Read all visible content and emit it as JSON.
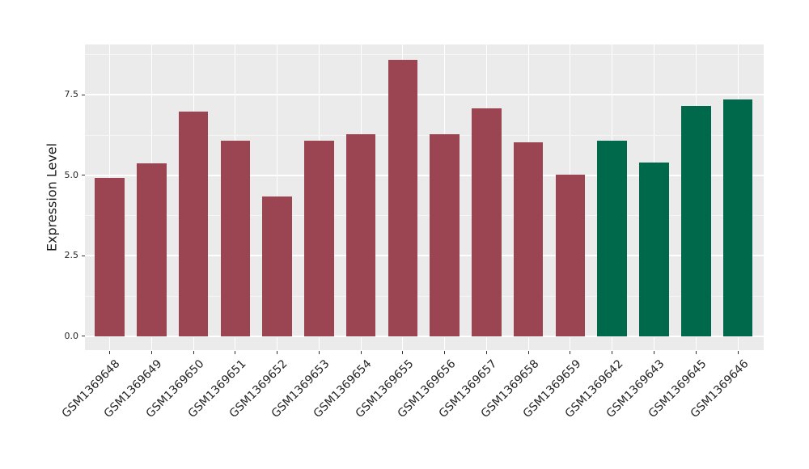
{
  "chart_data": {
    "type": "bar",
    "title": "",
    "xlabel": "",
    "ylabel": "Expression Level",
    "categories": [
      "GSM1369648",
      "GSM1369649",
      "GSM1369650",
      "GSM1369651",
      "GSM1369652",
      "GSM1369653",
      "GSM1369654",
      "GSM1369655",
      "GSM1369656",
      "GSM1369657",
      "GSM1369658",
      "GSM1369659",
      "GSM1369642",
      "GSM1369643",
      "GSM1369645",
      "GSM1369646"
    ],
    "values": [
      4.92,
      5.37,
      6.99,
      6.08,
      4.35,
      6.08,
      6.29,
      8.6,
      6.28,
      7.08,
      6.03,
      5.03,
      6.08,
      5.39,
      7.17,
      7.37
    ],
    "bar_groups": [
      "a",
      "a",
      "a",
      "a",
      "a",
      "a",
      "a",
      "a",
      "a",
      "a",
      "a",
      "a",
      "b",
      "b",
      "b",
      "b"
    ],
    "group_colors": {
      "a": "#9b4452",
      "b": "#00684b"
    },
    "yticks": [
      0.0,
      2.5,
      5.0,
      7.5
    ],
    "ytick_labels": [
      "0.0",
      "2.5",
      "5.0",
      "7.5"
    ],
    "yticks_minor": [
      1.25,
      3.75,
      6.25,
      8.75
    ],
    "ylim": [
      -0.43,
      9.07
    ],
    "legend": "none",
    "grid": "on",
    "panel_background": "#ebebeb",
    "grid_major_color": "#ffffff",
    "grid_minor_color": "#f6f6f6",
    "tick_color": "#333333",
    "text_color": "#262626"
  }
}
